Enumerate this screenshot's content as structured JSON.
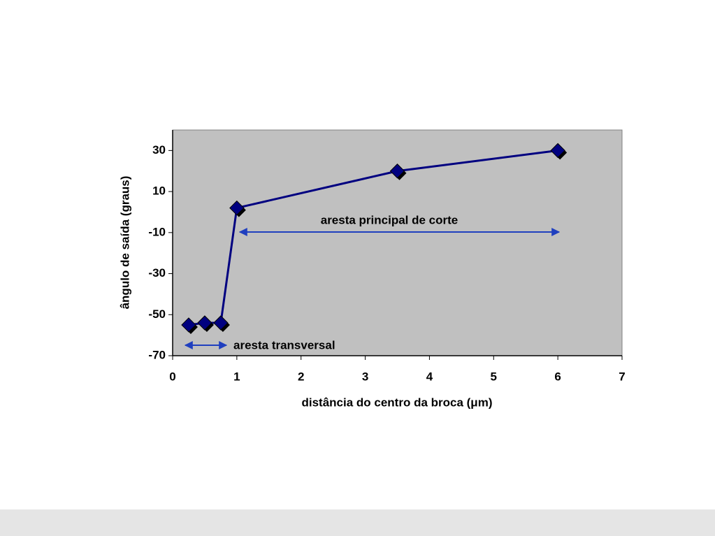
{
  "chart_data": {
    "type": "line",
    "x_label": "distância do centro da broca (μm)",
    "y_label": "ângulo de saída (graus)",
    "x": [
      0.25,
      0.5,
      0.75,
      1,
      3.5,
      6
    ],
    "values": [
      -55,
      -54,
      -54,
      2,
      20,
      30
    ],
    "color": "#000080",
    "plot_background": "#c0c0c0",
    "xlim": [
      0,
      7
    ],
    "xticks": [
      0,
      1,
      2,
      3,
      4,
      5,
      6,
      7
    ],
    "ylim": [
      -70,
      40
    ],
    "yticks": [
      -70,
      -50,
      -30,
      -10,
      10,
      30
    ],
    "annotations": [
      "aresta principal de corte",
      "aresta transversal"
    ]
  }
}
